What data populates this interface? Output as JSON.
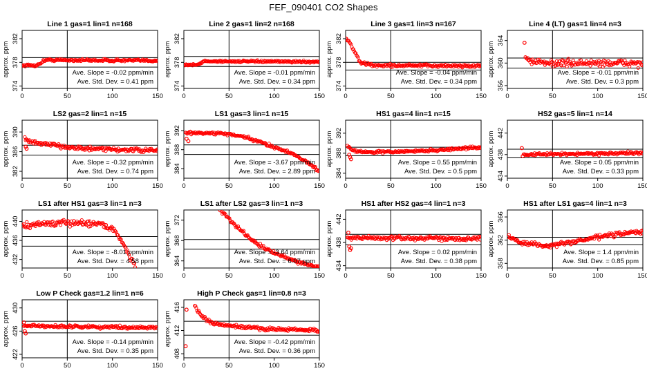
{
  "page_title": "FEF_090401  CO2 Shapes",
  "colors": {
    "points": "#ff0000",
    "axes": "#000000",
    "background": "#ffffff"
  },
  "chart_data": [
    {
      "type": "scatter",
      "title": "Line 1 gas=1 lin=1 n=168",
      "ylabel": "approx. ppm",
      "xlim": [
        0,
        150
      ],
      "ylim": [
        373.6,
        383.4
      ],
      "xticks": [
        0,
        50,
        100,
        150
      ],
      "yticks": [
        374,
        378,
        382
      ],
      "vline_x": 50,
      "hlines": [
        378.8,
        377.2
      ],
      "slope_text": "Ave. Slope = -0.02 ppm/min",
      "std_text": "Ave. Std. Dev. = 0.41 ppm",
      "shape": [
        [
          0,
          377.5
        ],
        [
          17,
          377.5
        ],
        [
          25,
          378.4
        ],
        [
          150,
          378.3
        ]
      ],
      "noise": 0.1
    },
    {
      "type": "scatter",
      "title": "Line 2 gas=1 lin=2 n=168",
      "ylabel": "approx. ppm",
      "xlim": [
        0,
        150
      ],
      "ylim": [
        373.6,
        383.4
      ],
      "xticks": [
        0,
        50,
        100,
        150
      ],
      "yticks": [
        374,
        378,
        382
      ],
      "vline_x": 50,
      "hlines": [
        379.0,
        377.3
      ],
      "slope_text": "Ave. Slope = -0.01 ppm/min",
      "std_text": "Ave. Std. Dev. = 0.34 ppm",
      "shape": [
        [
          0,
          377.6
        ],
        [
          16,
          377.6
        ],
        [
          22,
          378.2
        ],
        [
          150,
          378.1
        ]
      ],
      "noise": 0.08
    },
    {
      "type": "scatter",
      "title": "Line 3 gas=1 lin=3 n=167",
      "ylabel": "approx. ppm",
      "xlim": [
        0,
        150
      ],
      "ylim": [
        373.6,
        383.4
      ],
      "xticks": [
        0,
        50,
        100,
        150
      ],
      "yticks": [
        374,
        378,
        382
      ],
      "vline_x": 50,
      "hlines": [
        378.0,
        376.7
      ],
      "slope_text": "Ave. Slope = -0.04 ppm/min",
      "std_text": "Ave. Std. Dev. = 0.34 ppm",
      "shape": [
        [
          0,
          382.2
        ],
        [
          5,
          381.2
        ],
        [
          10,
          379.8
        ],
        [
          16,
          378.0
        ],
        [
          30,
          377.5
        ],
        [
          150,
          377.4
        ]
      ],
      "noise": 0.12
    },
    {
      "type": "scatter",
      "title": "Line 4 (LT) gas=1 lin=4 n=3",
      "ylabel": "approx. ppm",
      "xlim": [
        0,
        150
      ],
      "ylim": [
        355.5,
        365.8
      ],
      "xticks": [
        0,
        50,
        100,
        150
      ],
      "yticks": [
        356,
        360,
        364
      ],
      "vline_x": 50,
      "hlines": [
        360.9,
        359.1
      ],
      "slope_text": "Ave. Slope = -0.01 ppm/min",
      "std_text": "Ave. Std. Dev. = 0.3 ppm",
      "shape": [
        [
          20,
          361.2
        ],
        [
          28,
          360.2
        ],
        [
          40,
          360.0
        ],
        [
          150,
          360.0
        ]
      ],
      "noise": 0.3,
      "outliers": [
        [
          19,
          363.6
        ]
      ]
    },
    {
      "type": "scatter",
      "title": "LS2 gas=2 lin=1 n=15",
      "ylabel": "approx. ppm",
      "xlim": [
        0,
        150
      ],
      "ylim": [
        380.6,
        392.4
      ],
      "xticks": [
        0,
        50,
        100,
        150
      ],
      "yticks": [
        382,
        386,
        390
      ],
      "vline_x": 50,
      "hlines": [
        387.3,
        385.3
      ],
      "slope_text": "Ave. Slope = -0.32 ppm/min",
      "std_text": "Ave. Std. Dev. = 0.74 ppm",
      "shape": [
        [
          3,
          388.6
        ],
        [
          8,
          388.0
        ],
        [
          30,
          387.4
        ],
        [
          70,
          386.6
        ],
        [
          150,
          386.2
        ]
      ],
      "noise": 0.2,
      "outliers": [
        [
          4,
          387.0
        ],
        [
          5,
          386.6
        ]
      ]
    },
    {
      "type": "scatter",
      "title": "LS1 gas=3 lin=1 n=15",
      "ylabel": "approx. ppm",
      "xlim": [
        0,
        150
      ],
      "ylim": [
        382.0,
        394.2
      ],
      "xticks": [
        0,
        50,
        100,
        150
      ],
      "yticks": [
        384,
        388,
        392
      ],
      "vline_x": 50,
      "hlines": [
        389.0,
        387.0
      ],
      "slope_text": "Ave. Slope = -3.67 ppm/min",
      "std_text": "Ave. Std. Dev. = 2.89 ppm",
      "shape": [
        [
          2,
          391.6
        ],
        [
          15,
          391.5
        ],
        [
          45,
          391.4
        ],
        [
          70,
          390.5
        ],
        [
          100,
          388.6
        ],
        [
          125,
          386.8
        ],
        [
          150,
          383.5
        ]
      ],
      "noise": 0.15,
      "outliers": [
        [
          3,
          390.3
        ],
        [
          5,
          389.8
        ]
      ]
    },
    {
      "type": "scatter",
      "title": "HS1 gas=4 lin=1 n=15",
      "ylabel": "approx. ppm",
      "xlim": [
        0,
        150
      ],
      "ylim": [
        383.0,
        394.6
      ],
      "xticks": [
        0,
        50,
        100,
        150
      ],
      "yticks": [
        384,
        388,
        392
      ],
      "vline_x": 50,
      "hlines": [
        389.2,
        387.5
      ],
      "slope_text": "Ave. Slope = 0.55 ppm/min",
      "std_text": "Ave. Std. Dev. = 0.5 ppm",
      "shape": [
        [
          2,
          389.5
        ],
        [
          8,
          388.6
        ],
        [
          20,
          388.2
        ],
        [
          60,
          388.3
        ],
        [
          100,
          388.6
        ],
        [
          150,
          389.2
        ]
      ],
      "noise": 0.12,
      "outliers": [
        [
          4,
          387.7
        ],
        [
          5,
          387.2
        ],
        [
          6,
          386.8
        ]
      ]
    },
    {
      "type": "scatter",
      "title": "HS2 gas=5 lin=1 n=14",
      "ylabel": "approx. ppm",
      "xlim": [
        0,
        150
      ],
      "ylim": [
        433.6,
        444.4
      ],
      "xticks": [
        0,
        50,
        100,
        150
      ],
      "yticks": [
        434,
        438,
        442
      ],
      "vline_x": 50,
      "hlines": [
        439.0,
        437.4
      ],
      "slope_text": "Ave. Slope = 0.05 ppm/min",
      "std_text": "Ave. Std. Dev. = 0.33 ppm",
      "shape": [
        [
          18,
          438.0
        ],
        [
          150,
          438.3
        ]
      ],
      "noise": 0.12,
      "outliers": [
        [
          16,
          439.2
        ],
        [
          17,
          437.7
        ]
      ]
    },
    {
      "type": "scatter",
      "title": "LS1 after HS1 gas=3 lin=1 n=3",
      "ylabel": "approx. ppm",
      "xlim": [
        0,
        150
      ],
      "ylim": [
        430.2,
        442.4
      ],
      "xticks": [
        0,
        50,
        100,
        150
      ],
      "yticks": [
        432,
        436,
        440
      ],
      "vline_x": 50,
      "hlines": [
        436.8,
        434.8
      ],
      "slope_text": "Ave. Slope = -8.01 ppm/min",
      "std_text": "Ave. Std. Dev. = 4.58 ppm",
      "shape": [
        [
          0,
          439.0
        ],
        [
          20,
          439.5
        ],
        [
          60,
          439.7
        ],
        [
          85,
          439.6
        ],
        [
          100,
          438.5
        ],
        [
          110,
          436.0
        ],
        [
          120,
          432.5
        ],
        [
          126,
          430.2
        ]
      ],
      "noise": 0.3
    },
    {
      "type": "scatter",
      "title": "LS1 after LS2 gas=3 lin=1 n=3",
      "ylabel": "approx. ppm",
      "xlim": [
        0,
        150
      ],
      "ylim": [
        362.6,
        374.0
      ],
      "xticks": [
        0,
        50,
        100,
        150
      ],
      "yticks": [
        364,
        368,
        372
      ],
      "vline_x": 50,
      "hlines": [
        368.2,
        366.3
      ],
      "slope_text": "Ave. Slope = -3.64 ppm/min",
      "std_text": "Ave. Std. Dev. = 6.07 ppm",
      "shape": [
        [
          40,
          374.0
        ],
        [
          60,
          370.5
        ],
        [
          80,
          367.5
        ],
        [
          100,
          365.5
        ],
        [
          130,
          363.6
        ],
        [
          150,
          362.8
        ]
      ],
      "noise": 0.15
    },
    {
      "type": "scatter",
      "title": "HS1 after HS2 gas=4 lin=1 n=3",
      "ylabel": "approx. ppm",
      "xlim": [
        0,
        150
      ],
      "ylim": [
        433.6,
        443.6
      ],
      "xticks": [
        0,
        50,
        100,
        150
      ],
      "yticks": [
        434,
        438,
        442
      ],
      "vline_x": 50,
      "hlines": [
        439.4,
        437.6
      ],
      "slope_text": "Ave. Slope = 0.02 ppm/min",
      "std_text": "Ave. Std. Dev. = 0.38 ppm",
      "shape": [
        [
          2,
          438.8
        ],
        [
          150,
          438.7
        ]
      ],
      "noise": 0.18,
      "outliers": [
        [
          3,
          439.7
        ],
        [
          4,
          437.3
        ],
        [
          5,
          436.7
        ],
        [
          6,
          437.0
        ]
      ]
    },
    {
      "type": "scatter",
      "title": "HS1 after LS1 gas=4 lin=1 n=3",
      "ylabel": "approx. ppm",
      "xlim": [
        0,
        150
      ],
      "ylim": [
        357.2,
        367.2
      ],
      "xticks": [
        0,
        50,
        100,
        150
      ],
      "yticks": [
        358,
        362,
        366
      ],
      "vline_x": 50,
      "hlines": [
        362.5,
        361.2
      ],
      "slope_text": "Ave. Slope = 1.4 ppm/min",
      "std_text": "Ave. Std. Dev. = 0.85 ppm",
      "shape": [
        [
          0,
          362.6
        ],
        [
          15,
          361.6
        ],
        [
          45,
          361.0
        ],
        [
          80,
          361.9
        ],
        [
          110,
          362.8
        ],
        [
          150,
          363.5
        ]
      ],
      "noise": 0.18
    },
    {
      "type": "scatter",
      "title": "Low P Check gas=1.2 lin=1 n=6",
      "ylabel": "approx. ppm",
      "xlim": [
        0,
        150
      ],
      "ylim": [
        421.4,
        431.4
      ],
      "xticks": [
        0,
        50,
        100,
        150
      ],
      "yticks": [
        422,
        426,
        430
      ],
      "vline_x": 50,
      "hlines": [
        427.7,
        425.7
      ],
      "slope_text": "Ave. Slope = -0.14 ppm/min",
      "std_text": "Ave. Std. Dev. = 0.35 ppm",
      "shape": [
        [
          2,
          426.9
        ],
        [
          150,
          426.6
        ]
      ],
      "noise": 0.12,
      "outliers": [
        [
          2,
          427.5
        ],
        [
          3,
          426.0
        ],
        [
          4,
          425.6
        ]
      ]
    },
    {
      "type": "scatter",
      "title": "High P Check gas=1 lin=0.8 n=3",
      "ylabel": "approx. ppm",
      "xlim": [
        0,
        150
      ],
      "ylim": [
        407.3,
        417.3
      ],
      "xticks": [
        0,
        50,
        100,
        150
      ],
      "yticks": [
        408,
        412,
        416
      ],
      "vline_x": 50,
      "hlines": [
        413.6,
        411.2
      ],
      "slope_text": "Ave. Slope = -0.42 ppm/min",
      "std_text": "Ave. Std. Dev. = 0.36 ppm",
      "shape": [
        [
          12,
          416.3
        ],
        [
          20,
          414.4
        ],
        [
          30,
          413.3
        ],
        [
          50,
          412.8
        ],
        [
          90,
          412.3
        ],
        [
          150,
          412.0
        ]
      ],
      "noise": 0.15,
      "outliers": [
        [
          2,
          409.3
        ],
        [
          3,
          415.6
        ]
      ]
    }
  ]
}
